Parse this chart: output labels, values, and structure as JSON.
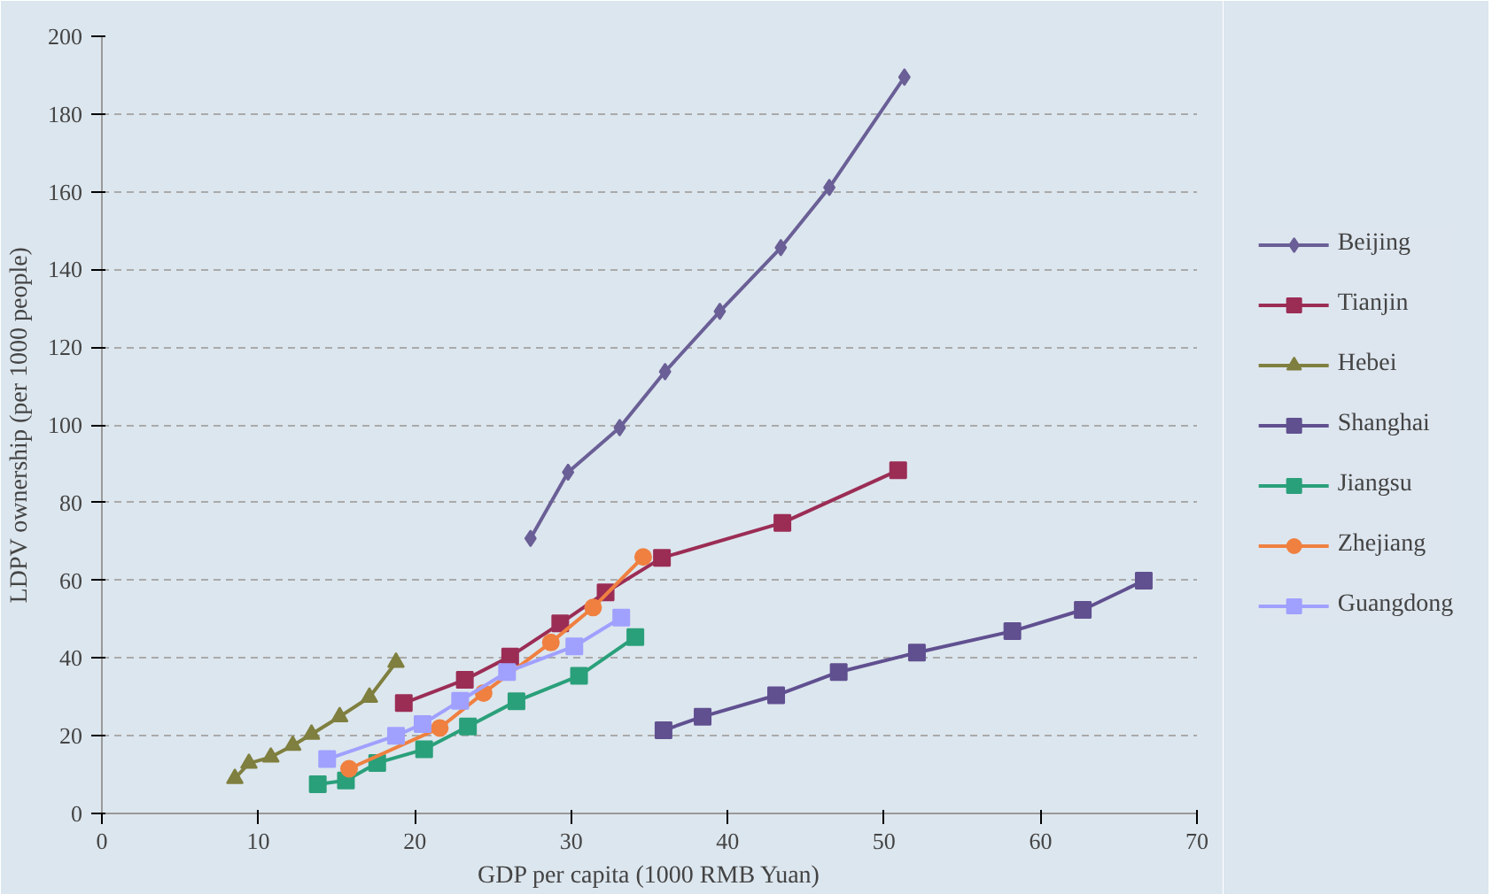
{
  "chart_data": {
    "type": "line",
    "xlabel": "GDP per capita (1000 RMB Yuan)",
    "ylabel": "LDPV ownership (per 1000 people)",
    "xlim": [
      0,
      70
    ],
    "ylim": [
      0,
      200
    ],
    "xticks": [
      0,
      10,
      20,
      30,
      40,
      50,
      60,
      70
    ],
    "yticks": [
      0,
      20,
      40,
      60,
      80,
      100,
      120,
      140,
      160,
      180,
      200
    ],
    "grid": "y",
    "legend": "right",
    "line_style": "solid",
    "series": [
      {
        "name": "Beijing",
        "color": "#6a5f96",
        "marker": "diamond",
        "x": [
          27.4,
          29.8,
          33.1,
          36.0,
          39.5,
          43.4,
          46.5,
          51.3
        ],
        "values": [
          70.8,
          87.8,
          99.3,
          113.7,
          129.2,
          145.6,
          161.1,
          189.5
        ]
      },
      {
        "name": "Tianjin",
        "color": "#9b2d55",
        "marker": "square",
        "x": [
          19.3,
          23.2,
          26.1,
          29.3,
          32.2,
          35.8,
          43.5,
          50.9
        ],
        "values": [
          28.4,
          34.4,
          40.4,
          48.9,
          56.9,
          65.8,
          74.8,
          88.3
        ]
      },
      {
        "name": "Hebei",
        "color": "#7f7f3f",
        "marker": "triangle",
        "x": [
          8.5,
          9.4,
          10.8,
          12.2,
          13.4,
          15.2,
          17.1,
          18.8
        ],
        "values": [
          9.0,
          12.9,
          14.5,
          17.5,
          20.4,
          24.9,
          29.9,
          38.9
        ]
      },
      {
        "name": "Shanghai",
        "color": "#605090",
        "marker": "square",
        "x": [
          35.9,
          38.4,
          43.1,
          47.1,
          52.1,
          58.2,
          62.7,
          66.6
        ],
        "values": [
          21.4,
          24.9,
          30.4,
          36.4,
          41.4,
          46.9,
          52.4,
          59.9
        ]
      },
      {
        "name": "Jiangsu",
        "color": "#2aa07a",
        "marker": "square",
        "x": [
          13.8,
          15.6,
          17.6,
          20.6,
          23.4,
          26.5,
          30.5,
          34.1
        ],
        "values": [
          7.5,
          8.5,
          13.0,
          16.5,
          22.4,
          28.9,
          35.4,
          45.4
        ]
      },
      {
        "name": "Zhejiang",
        "color": "#f08040",
        "marker": "circle",
        "x": [
          15.8,
          21.6,
          24.4,
          28.7,
          31.4,
          34.6
        ],
        "values": [
          11.5,
          22.0,
          31.0,
          44.0,
          53.0,
          66.0
        ]
      },
      {
        "name": "Guangdong",
        "color": "#a0a0ff",
        "marker": "square",
        "x": [
          14.4,
          18.8,
          20.5,
          22.9,
          25.9,
          30.2,
          33.2
        ],
        "values": [
          14.0,
          20.0,
          23.0,
          29.0,
          36.4,
          43.0,
          50.4
        ]
      }
    ]
  }
}
